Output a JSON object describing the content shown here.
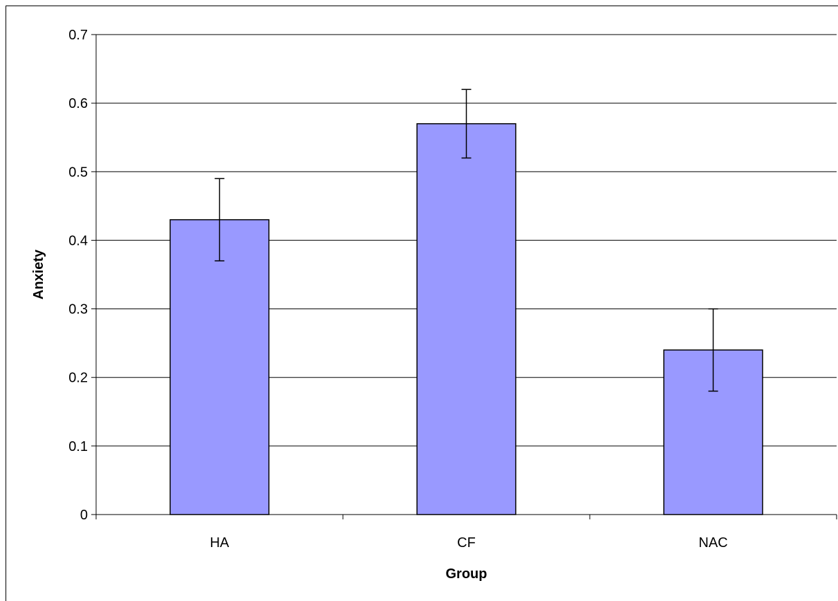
{
  "chart_data": {
    "type": "bar",
    "title": "",
    "xlabel": "Group",
    "ylabel": "Anxiety",
    "categories": [
      "HA",
      "CF",
      "NAC"
    ],
    "values": [
      0.43,
      0.57,
      0.24
    ],
    "error_low": [
      0.37,
      0.52,
      0.18
    ],
    "error_high": [
      0.49,
      0.62,
      0.3
    ],
    "ylim": [
      0,
      0.7
    ],
    "yticks": [
      "0",
      "0.1",
      "0.2",
      "0.3",
      "0.4",
      "0.5",
      "0.6",
      "0.7"
    ],
    "grid": true,
    "legend": "none",
    "colors": {
      "bar_fill": "#9999ff",
      "bar_stroke": "#000000",
      "grid": "#000000"
    }
  }
}
